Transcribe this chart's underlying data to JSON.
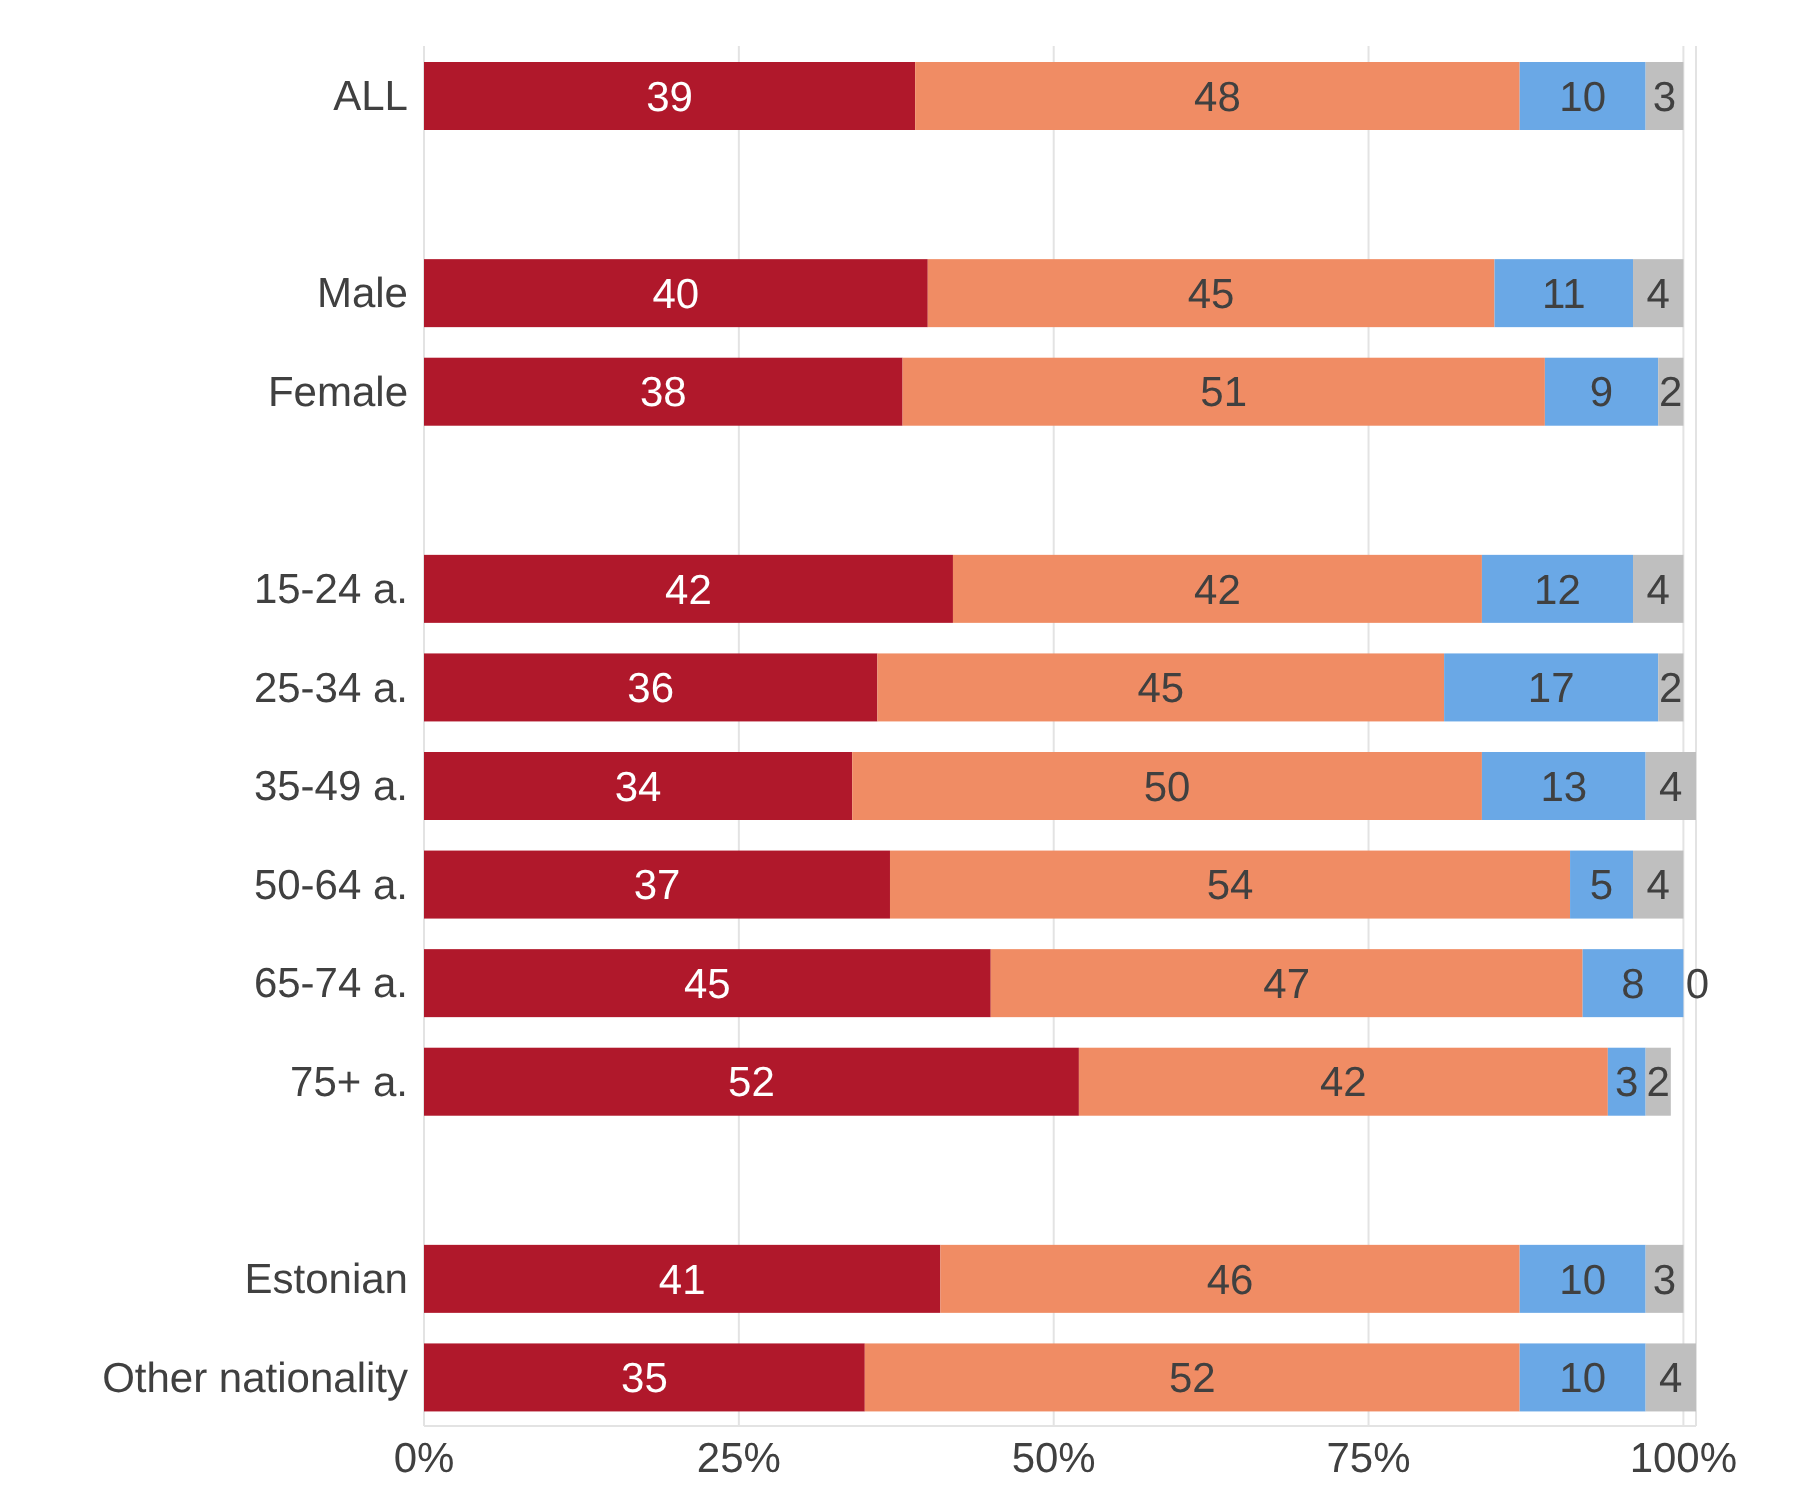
{
  "chart_data": {
    "type": "bar",
    "orientation": "horizontal",
    "stacked": true,
    "categories": [
      "ALL",
      null,
      "Male",
      "Female",
      null,
      "15-24 a.",
      "25-34 a.",
      "35-49 a.",
      "50-64 a.",
      "65-74 a.",
      "75+ a.",
      null,
      "Estonian",
      "Other nationality"
    ],
    "series": [
      {
        "color": "#b0182b",
        "values": [
          39,
          null,
          40,
          38,
          null,
          42,
          36,
          34,
          37,
          45,
          52,
          null,
          41,
          35
        ]
      },
      {
        "color": "#f08c64",
        "values": [
          48,
          null,
          45,
          51,
          null,
          42,
          45,
          50,
          54,
          47,
          42,
          null,
          46,
          52
        ]
      },
      {
        "color": "#6aa8e6",
        "values": [
          10,
          null,
          11,
          9,
          null,
          12,
          17,
          13,
          5,
          8,
          3,
          null,
          10,
          10
        ]
      },
      {
        "color": "#bfbfbf",
        "values": [
          3,
          null,
          4,
          2,
          null,
          4,
          2,
          4,
          4,
          0,
          2,
          null,
          3,
          4
        ]
      }
    ],
    "xlim": [
      0,
      101
    ],
    "xticks": [
      {
        "value": 0,
        "label": "0%"
      },
      {
        "value": 25,
        "label": "25%"
      },
      {
        "value": 50,
        "label": "50%"
      },
      {
        "value": 75,
        "label": "75%"
      },
      {
        "value": 100,
        "label": "100%"
      }
    ],
    "grid": "x",
    "legend": false,
    "data_labels": true
  }
}
